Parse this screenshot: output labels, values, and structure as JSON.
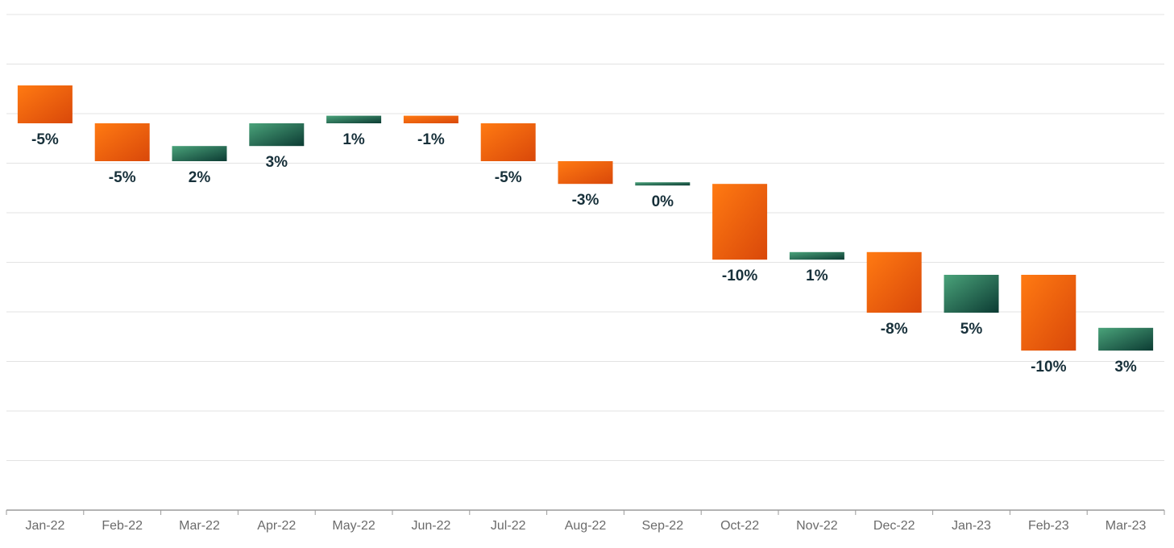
{
  "chart_data": {
    "type": "bar",
    "subtype": "waterfall",
    "title": "",
    "xlabel": "",
    "ylabel": "",
    "grid": true,
    "y_axis_labels_shown": false,
    "categories": [
      "Jan-22",
      "Feb-22",
      "Mar-22",
      "Apr-22",
      "May-22",
      "Jun-22",
      "Jul-22",
      "Aug-22",
      "Sep-22",
      "Oct-22",
      "Nov-22",
      "Dec-22",
      "Jan-23",
      "Feb-23",
      "Mar-23"
    ],
    "values": [
      -5,
      -5,
      2,
      3,
      1,
      -1,
      -5,
      -3,
      0,
      -10,
      1,
      -8,
      5,
      -10,
      3
    ],
    "data_labels": [
      "-5%",
      "-5%",
      "2%",
      "3%",
      "1%",
      "-1%",
      "-5%",
      "-3%",
      "0%",
      "-10%",
      "1%",
      "-8%",
      "5%",
      "-10%",
      "3%"
    ],
    "colors": {
      "negative_light": "#ff7a12",
      "negative_dark": "#d9480a",
      "positive_light": "#4aa37a",
      "positive_dark": "#0c3b33",
      "label": "#17303a",
      "grid": "#e3e3e3",
      "axis": "#9a9a9a",
      "tick": "#6b6b6b"
    }
  }
}
